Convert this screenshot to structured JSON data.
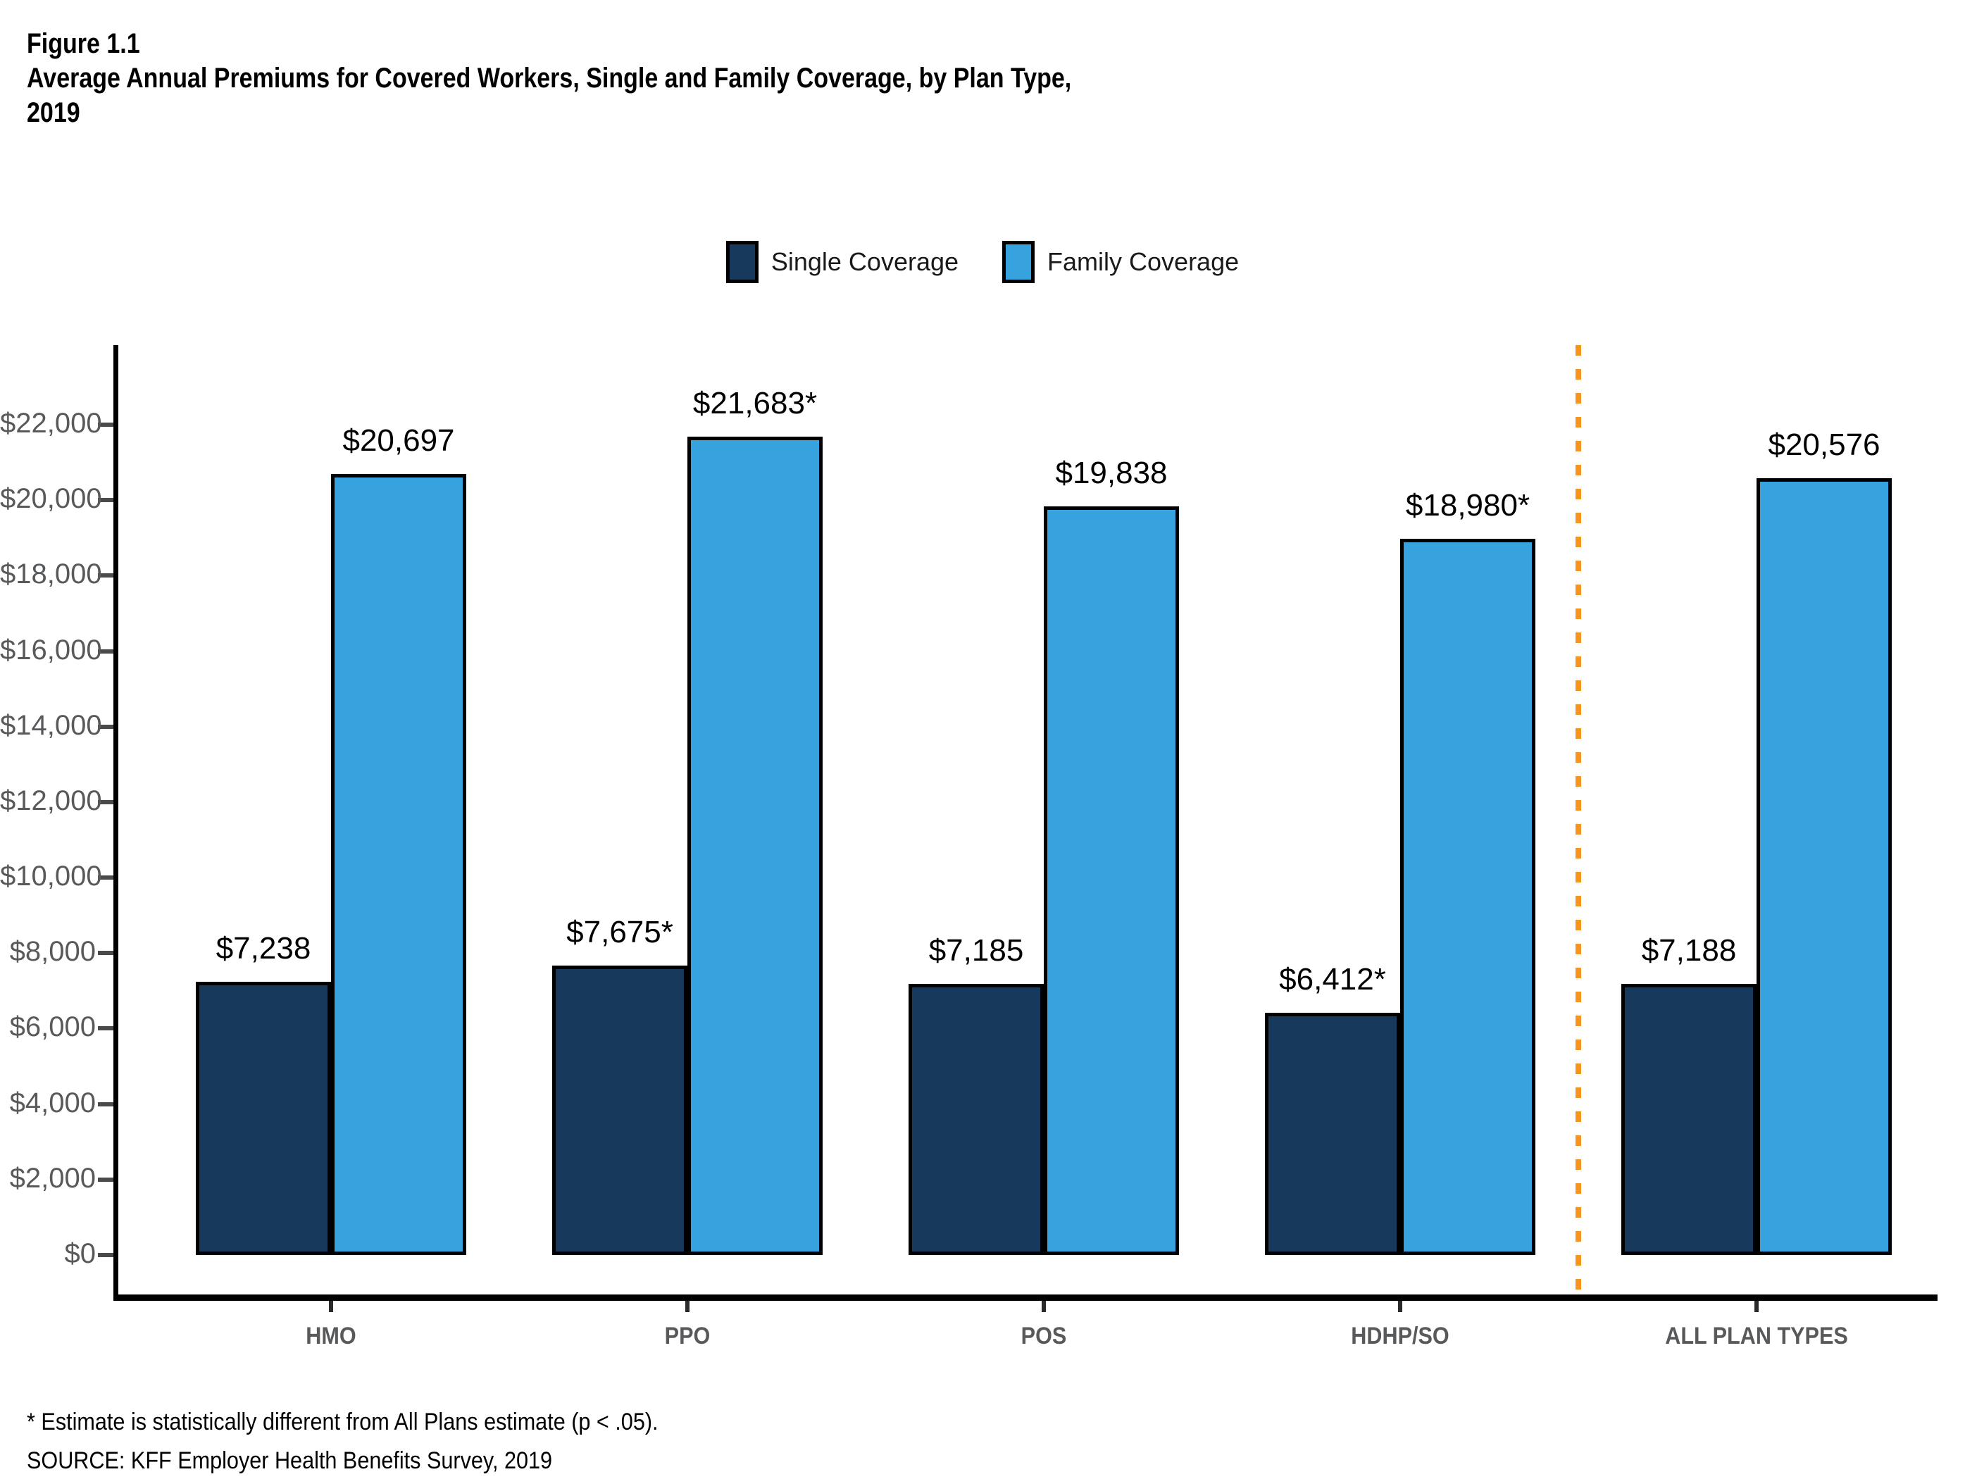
{
  "figure": {
    "label": "Figure 1.1",
    "title_line1": "Average Annual Premiums for Covered Workers, Single and Family Coverage, by Plan Type,",
    "title_line2": "2019"
  },
  "legend": [
    {
      "label": "Single Coverage",
      "color": "#17395C"
    },
    {
      "label": "Family Coverage",
      "color": "#36A3DF"
    }
  ],
  "chart_data": {
    "type": "bar",
    "title": "Average Annual Premiums for Covered Workers, Single and Family Coverage, by Plan Type, 2019",
    "categories": [
      "HMO",
      "PPO",
      "POS",
      "HDHP/SO",
      "ALL PLAN TYPES"
    ],
    "series": [
      {
        "name": "Single Coverage",
        "color": "#17395C",
        "values": [
          7238,
          7675,
          7185,
          6412,
          7188
        ],
        "labels": [
          "$7,238",
          "$7,675*",
          "$7,185",
          "$6,412*",
          "$7,188"
        ]
      },
      {
        "name": "Family Coverage",
        "color": "#36A3DF",
        "values": [
          20697,
          21683,
          19838,
          18980,
          20576
        ],
        "labels": [
          "$20,697",
          "$21,683*",
          "$19,838",
          "$18,980*",
          "$20,576"
        ]
      }
    ],
    "ylabel": "",
    "xlabel": "",
    "ylim": [
      0,
      24000
    ],
    "yticks": [
      0,
      2000,
      4000,
      6000,
      8000,
      10000,
      12000,
      14000,
      16000,
      18000,
      20000,
      22000
    ],
    "ytick_labels": [
      "$0",
      "$2,000",
      "$4,000",
      "$6,000",
      "$8,000",
      "$10,000",
      "$12,000",
      "$14,000",
      "$16,000",
      "$18,000",
      "$20,000",
      "$22,000"
    ],
    "grid": false,
    "legend_position": "top",
    "separator_before_category": "ALL PLAN TYPES",
    "separator_color": "#F7941D",
    "bar_border_color": "#000000"
  },
  "footnotes": {
    "line1": "* Estimate is statistically different from All Plans estimate (p < .05).",
    "line2": "SOURCE: KFF Employer Health Benefits Survey, 2019"
  }
}
